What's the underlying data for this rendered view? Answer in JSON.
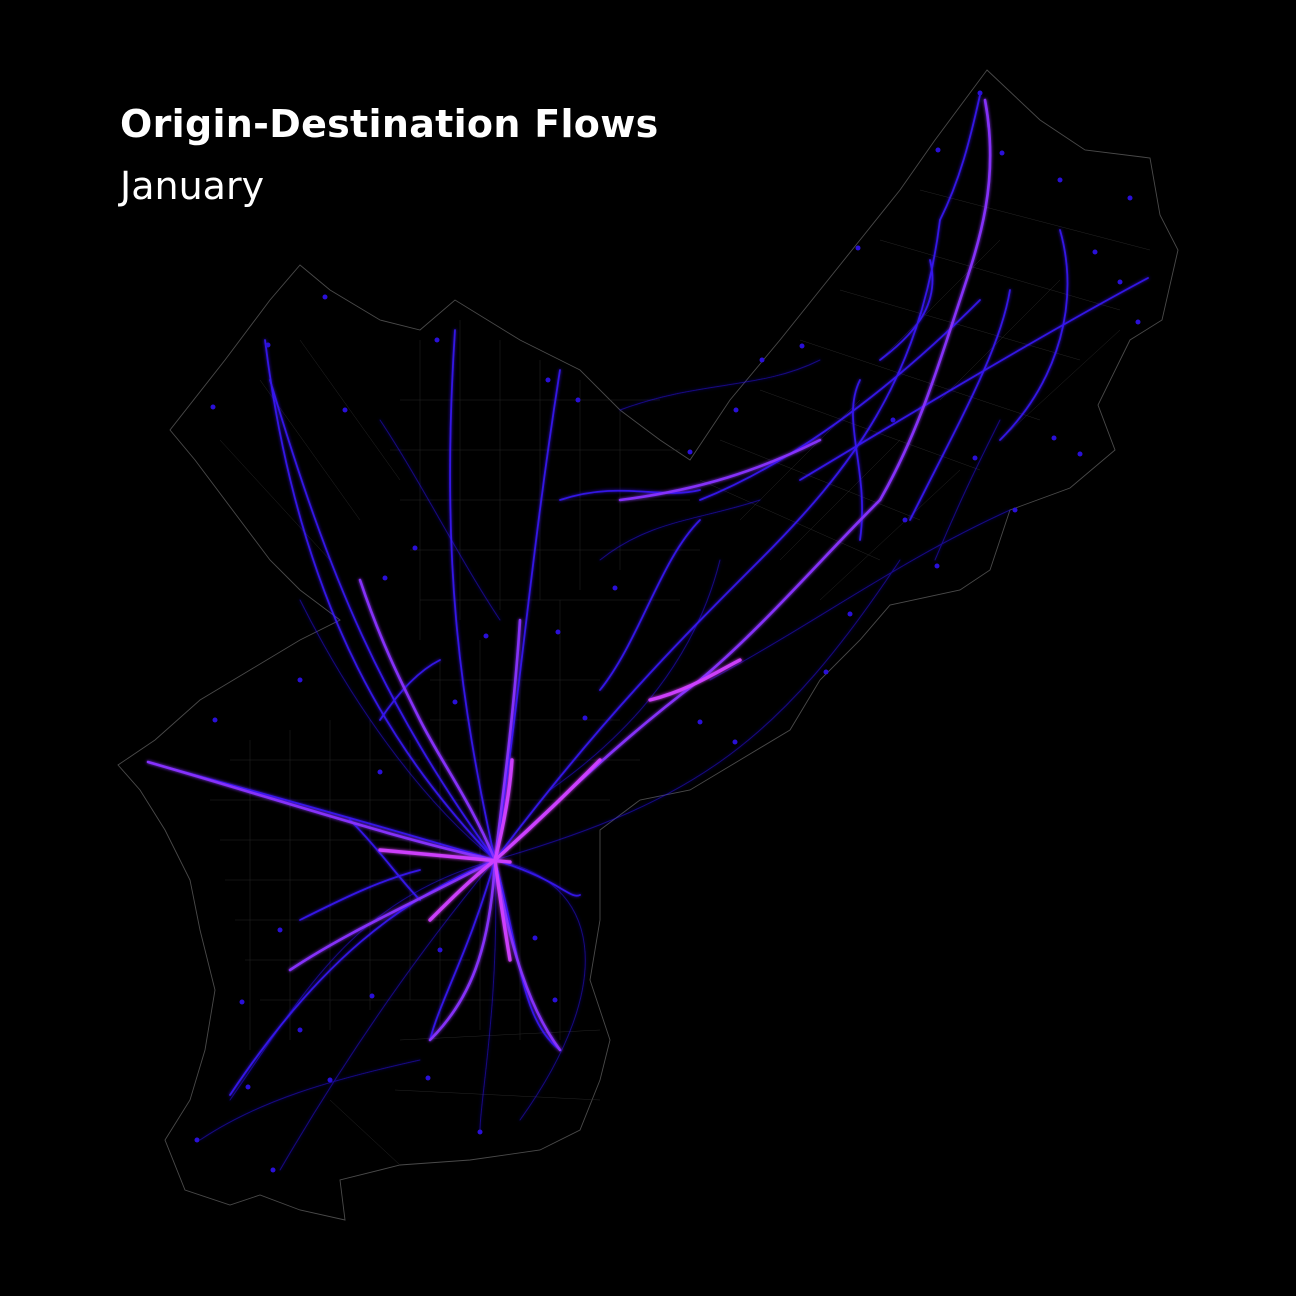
{
  "map": {
    "title": "Origin-Destination Flows",
    "subtitle": "January"
  },
  "style": {
    "background": "#000000",
    "text_color": "#ffffff",
    "boundary_color": "#4a4a4a",
    "flow_color_low": "#2a12ff",
    "flow_color_mid": "#6a2cff",
    "flow_color_high": "#c43cff",
    "node_color": "#2a10d8"
  },
  "legend": null
}
